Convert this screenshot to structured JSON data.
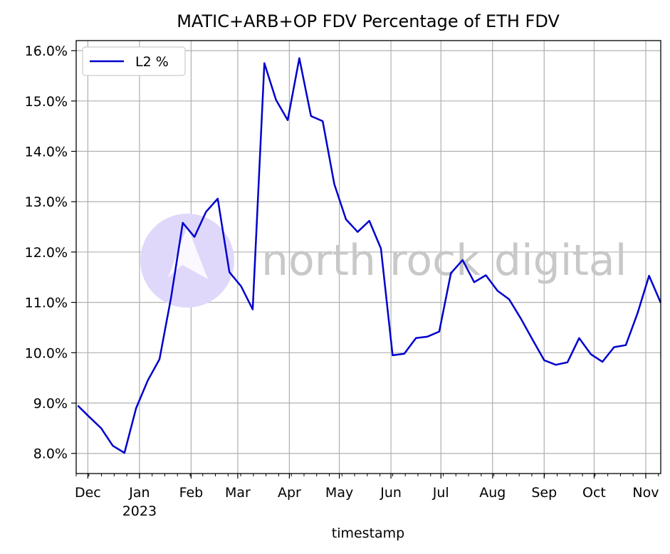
{
  "chart_data": {
    "type": "line",
    "title": "MATIC+ARB+OP FDV Percentage of ETH FDV",
    "xlabel": "timestamp",
    "ylabel": "",
    "legend": {
      "position": "top-left",
      "entries": [
        "L2 %"
      ]
    },
    "grid": true,
    "ylim": [
      7.6,
      16.2
    ],
    "xlim_days": [
      -7,
      344
    ],
    "yticks": [
      8.0,
      9.0,
      10.0,
      11.0,
      12.0,
      13.0,
      14.0,
      15.0,
      16.0
    ],
    "ytick_labels": [
      "8.0%",
      "9.0%",
      "10.0%",
      "11.0%",
      "12.0%",
      "13.0%",
      "14.0%",
      "15.0%",
      "16.0%"
    ],
    "xticks": [
      {
        "day": 0,
        "label": "Dec",
        "sublabel": ""
      },
      {
        "day": 31,
        "label": "Jan",
        "sublabel": "2023"
      },
      {
        "day": 62,
        "label": "Feb",
        "sublabel": ""
      },
      {
        "day": 90,
        "label": "Mar",
        "sublabel": ""
      },
      {
        "day": 121,
        "label": "Apr",
        "sublabel": ""
      },
      {
        "day": 151,
        "label": "May",
        "sublabel": ""
      },
      {
        "day": 182,
        "label": "Jun",
        "sublabel": ""
      },
      {
        "day": 212,
        "label": "Jul",
        "sublabel": ""
      },
      {
        "day": 243,
        "label": "Aug",
        "sublabel": ""
      },
      {
        "day": 274,
        "label": "Sep",
        "sublabel": ""
      },
      {
        "day": 304,
        "label": "Oct",
        "sublabel": ""
      },
      {
        "day": 335,
        "label": "Nov",
        "sublabel": ""
      }
    ],
    "series": [
      {
        "name": "L2 %",
        "color": "#0000cc",
        "days": [
          -6,
          1,
          8,
          15,
          22,
          29,
          36,
          43,
          50,
          57,
          64,
          71,
          78,
          85,
          92,
          99,
          106,
          113,
          120,
          127,
          134,
          141,
          148,
          155,
          162,
          169,
          176,
          183,
          190,
          197,
          204,
          211,
          218,
          225,
          232,
          239,
          246,
          253,
          260,
          267,
          274,
          281,
          288,
          295,
          302,
          309,
          316,
          323,
          330,
          337,
          344
        ],
        "values": [
          8.95,
          8.72,
          8.5,
          8.15,
          8.01,
          8.9,
          9.45,
          9.87,
          11.1,
          12.58,
          12.3,
          12.8,
          13.06,
          11.6,
          11.32,
          10.86,
          15.75,
          15.02,
          14.62,
          15.85,
          14.7,
          14.6,
          13.35,
          12.65,
          12.4,
          12.62,
          12.07,
          9.95,
          9.98,
          10.29,
          10.32,
          10.42,
          11.58,
          11.84,
          11.4,
          11.54,
          11.23,
          11.06,
          10.68,
          10.26,
          9.85,
          9.76,
          9.81,
          10.29,
          9.97,
          9.82,
          10.11,
          10.15,
          10.78,
          11.53,
          10.99
        ]
      }
    ]
  },
  "watermark": {
    "text": "north rock digital",
    "circle_color": "#e0d8fb",
    "text_color": "#c8c8c8"
  }
}
